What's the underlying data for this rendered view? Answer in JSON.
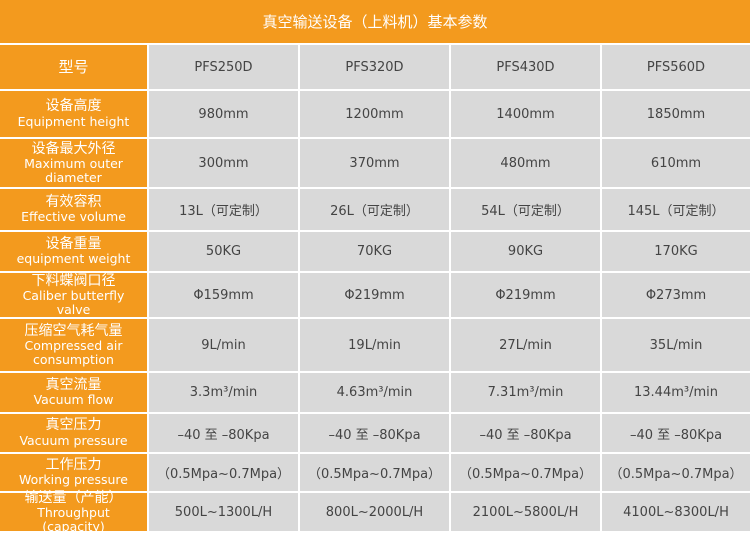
{
  "title": "真空输送设备（上料机）基本参数",
  "header": {
    "label": "型号",
    "models": [
      "PFS250D",
      "PFS320D",
      "PFS430D",
      "PFS560D"
    ]
  },
  "rows": [
    {
      "label_zh": "设备高度",
      "label_en": "Equipment height",
      "values": [
        "980mm",
        "1200mm",
        "1400mm",
        "1850mm"
      ]
    },
    {
      "label_zh": "设备最大外径",
      "label_en": "Maximum outer diameter",
      "values": [
        "300mm",
        "370mm",
        "480mm",
        "610mm"
      ]
    },
    {
      "label_zh": "有效容积",
      "label_en": "Effective volume",
      "values": [
        "13L（可定制）",
        "26L（可定制）",
        "54L（可定制）",
        "145L（可定制）"
      ]
    },
    {
      "label_zh": "设备重量",
      "label_en": "equipment weight",
      "values": [
        "50KG",
        "70KG",
        "90KG",
        "170KG"
      ]
    },
    {
      "label_zh": "下料蝶阀口径",
      "label_en": "Caliber butterfly valve",
      "values": [
        "Φ159mm",
        "Φ219mm",
        "Φ219mm",
        "Φ273mm"
      ]
    },
    {
      "label_zh": "压缩空气耗气量",
      "label_en": "Compressed air consumption",
      "values": [
        "9L/min",
        "19L/min",
        "27L/min",
        "35L/min"
      ]
    },
    {
      "label_zh": "真空流量",
      "label_en": "Vacuum flow",
      "values": [
        "3.3m³/min",
        "4.63m³/min",
        "7.31m³/min",
        "13.44m³/min"
      ]
    },
    {
      "label_zh": "真空压力",
      "label_en": "Vacuum pressure",
      "values": [
        "–40 至 –80Kpa",
        "–40 至 –80Kpa",
        "–40 至 –80Kpa",
        "–40 至 –80Kpa"
      ]
    },
    {
      "label_zh": "工作压力",
      "label_en": "Working pressure",
      "values": [
        "（0.5Mpa~0.7Mpa）",
        "（0.5Mpa~0.7Mpa）",
        "（0.5Mpa~0.7Mpa）",
        "（0.5Mpa~0.7Mpa）"
      ]
    },
    {
      "label_zh": "输送量（产能）",
      "label_en": "Throughput (capacity)",
      "values": [
        "500L~1300L/H",
        "800L~2000L/H",
        "2100L~5800L/H",
        "4100L~8300L/H"
      ]
    }
  ]
}
